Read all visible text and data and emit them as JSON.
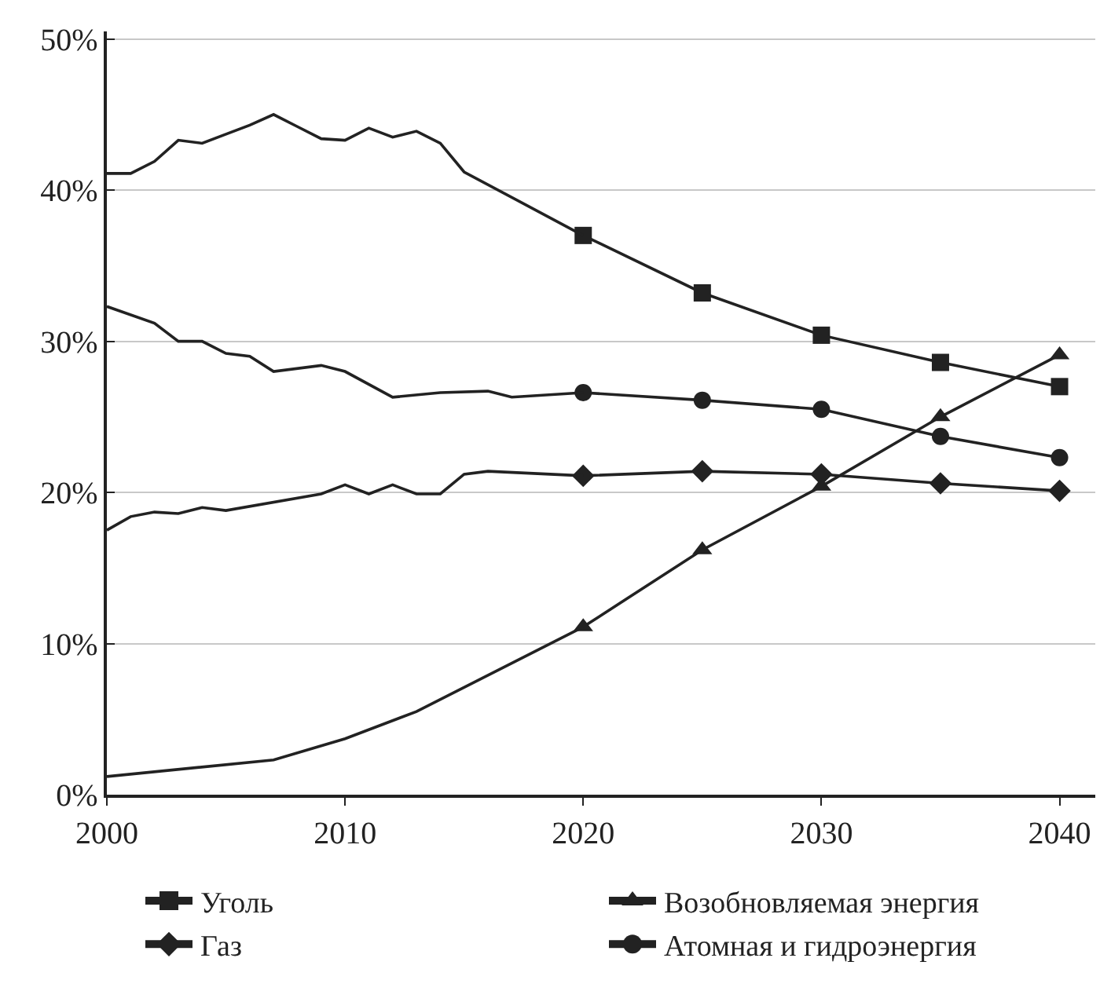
{
  "chart_data": {
    "type": "line",
    "xlim": [
      2000,
      2041.5
    ],
    "xticks": [
      2000,
      2010,
      2020,
      2030,
      2040
    ],
    "ylim": [
      0,
      50.5
    ],
    "yticks": [
      {
        "value": 0,
        "label": "0%"
      },
      {
        "value": 10,
        "label": "10%"
      },
      {
        "value": 20,
        "label": "20%"
      },
      {
        "value": 30,
        "label": "30%"
      },
      {
        "value": 40,
        "label": "40%"
      },
      {
        "value": 50,
        "label": "50%"
      }
    ],
    "grid": "y",
    "legend": "bottom",
    "line_style": "solid",
    "series": [
      {
        "name": "Уголь",
        "color": "#222222",
        "marker": "square",
        "x": [
          2020,
          2025,
          2030,
          2035,
          2040
        ],
        "values": [
          37.0,
          33.2,
          30.4,
          28.6,
          27.0
        ]
      },
      {
        "name": "Возобновляемая энергия",
        "color": "#222222",
        "marker": "triangle",
        "x": [
          2020,
          2025,
          2030,
          2035,
          2040
        ],
        "values": [
          11.1,
          16.2,
          20.4,
          25.0,
          29.1
        ]
      },
      {
        "name": "Газ",
        "color": "#222222",
        "marker": "diamond",
        "x": [
          2020,
          2025,
          2030,
          2035,
          2040
        ],
        "values": [
          21.1,
          21.4,
          21.2,
          20.6,
          20.1
        ]
      },
      {
        "name": "Атомная и гидроэнергия",
        "color": "#222222",
        "marker": "circle",
        "x": [
          2020,
          2025,
          2030,
          2035,
          2040
        ],
        "values": [
          26.6,
          26.1,
          25.5,
          23.7,
          22.3
        ]
      },
      {
        "color": "#222222",
        "marker": "none",
        "x": [
          2000,
          2001,
          2002,
          2003,
          2004,
          2005,
          2006,
          2007,
          2008,
          2009,
          2010,
          2011,
          2012,
          2013,
          2014,
          2015,
          2020
        ],
        "values": [
          41.1,
          41.1,
          41.9,
          43.3,
          43.1,
          43.7,
          44.3,
          45.0,
          44.2,
          43.4,
          43.3,
          44.1,
          43.5,
          43.9,
          43.1,
          41.2,
          37.0
        ]
      },
      {
        "color": "#222222",
        "marker": "none",
        "x": [
          2000,
          2007,
          2010,
          2013,
          2020
        ],
        "values": [
          1.2,
          2.3,
          3.7,
          5.5,
          11.1
        ]
      },
      {
        "color": "#222222",
        "marker": "none",
        "x": [
          2000,
          2001,
          2002,
          2003,
          2004,
          2005,
          2009,
          2010,
          2011,
          2012,
          2013,
          2014,
          2015,
          2016,
          2020
        ],
        "values": [
          17.5,
          18.4,
          18.7,
          18.6,
          19.0,
          18.8,
          19.9,
          20.5,
          19.9,
          20.5,
          19.9,
          19.9,
          21.2,
          21.4,
          21.1
        ]
      },
      {
        "color": "#222222",
        "marker": "none",
        "x": [
          2000,
          2002,
          2003,
          2004,
          2005,
          2006,
          2007,
          2009,
          2010,
          2012,
          2014,
          2016,
          2017,
          2020
        ],
        "values": [
          32.3,
          31.2,
          30.0,
          30.0,
          29.2,
          29.0,
          28.0,
          28.4,
          28.0,
          26.3,
          26.6,
          26.7,
          26.3,
          26.6
        ]
      }
    ]
  }
}
